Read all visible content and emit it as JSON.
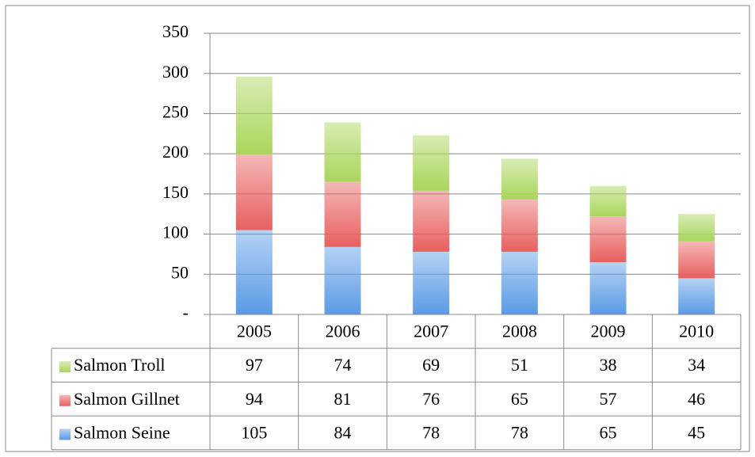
{
  "chart_data": {
    "type": "stacked_bar",
    "categories": [
      "2005",
      "2006",
      "2007",
      "2008",
      "2009",
      "2010"
    ],
    "series": [
      {
        "name": "Salmon Seine",
        "color": "#5a9be6",
        "values": [
          105,
          84,
          78,
          78,
          65,
          45
        ]
      },
      {
        "name": "Salmon Gillnet",
        "color": "#e8605f",
        "values": [
          94,
          81,
          76,
          65,
          57,
          46
        ]
      },
      {
        "name": "Salmon Troll",
        "color": "#a9d65a",
        "values": [
          97,
          74,
          69,
          51,
          38,
          34
        ]
      }
    ],
    "ylim": [
      0,
      350
    ],
    "yticks": [
      {
        "value": 0,
        "label": "-"
      },
      50,
      100,
      150,
      200,
      250,
      300,
      350
    ],
    "grid": true,
    "data_table": true
  }
}
